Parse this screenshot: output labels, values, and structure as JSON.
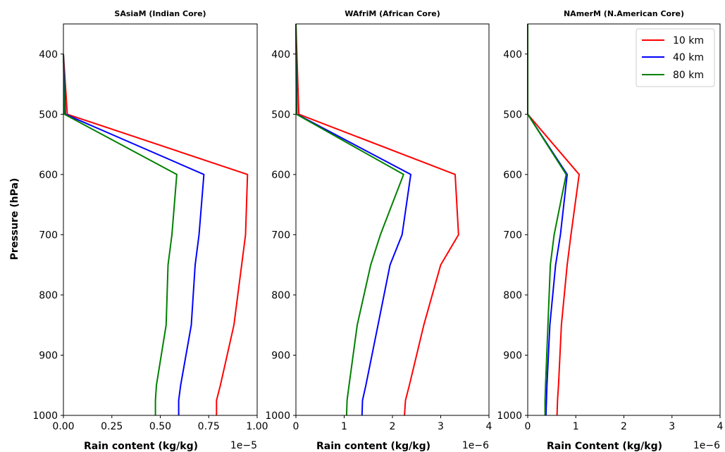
{
  "figure": {
    "ylabel": "Pressure (hPa)"
  },
  "legend": {
    "location": "upper right",
    "entries": [
      {
        "label": "10 km",
        "color": "#ff0000"
      },
      {
        "label": "40 km",
        "color": "#0000ff"
      },
      {
        "label": "80 km",
        "color": "#008000"
      }
    ]
  },
  "chart_data": [
    {
      "type": "line",
      "title": "SAsiaM (Indian Core)",
      "xlabel": "Rain content (kg/kg)",
      "x_offset_label": "1e−5",
      "xlim": [
        0,
        1.0
      ],
      "ylim": [
        1000,
        350
      ],
      "y_inverted": true,
      "xticks": [
        "0.00",
        "0.25",
        "0.50",
        "0.75",
        "1.00"
      ],
      "xtick_values": [
        0,
        0.25,
        0.5,
        0.75,
        1.0
      ],
      "yticks": [
        "400",
        "500",
        "600",
        "700",
        "800",
        "900",
        "1000"
      ],
      "ytick_values": [
        400,
        500,
        600,
        700,
        800,
        900,
        1000
      ],
      "series": [
        {
          "name": "10 km",
          "color": "#ff0000",
          "x": [
            0.0,
            0.02,
            0.95,
            0.94,
            0.92,
            0.88,
            0.81,
            0.79,
            0.79
          ],
          "y": [
            400,
            500,
            600,
            700,
            750,
            850,
            950,
            975,
            1000
          ]
        },
        {
          "name": "40 km",
          "color": "#0000ff",
          "x": [
            0.0,
            0.01,
            0.725,
            0.7,
            0.68,
            0.66,
            0.605,
            0.595,
            0.595
          ],
          "y": [
            400,
            500,
            600,
            700,
            750,
            850,
            950,
            975,
            1000
          ]
        },
        {
          "name": "80 km",
          "color": "#008000",
          "x": [
            0.0,
            0.005,
            0.585,
            0.56,
            0.54,
            0.53,
            0.48,
            0.475,
            0.475
          ],
          "y": [
            400,
            500,
            600,
            700,
            750,
            850,
            950,
            975,
            1000
          ]
        }
      ]
    },
    {
      "type": "line",
      "title": "WAfriM (African Core)",
      "xlabel": "Rain content (kg/kg)",
      "x_offset_label": "1e−6",
      "xlim": [
        0,
        4
      ],
      "ylim": [
        1000,
        350
      ],
      "y_inverted": true,
      "xticks": [
        "0",
        "1",
        "2",
        "3",
        "4"
      ],
      "xtick_values": [
        0,
        1,
        2,
        3,
        4
      ],
      "yticks": [
        "400",
        "500",
        "600",
        "700",
        "800",
        "900",
        "1000"
      ],
      "ytick_values": [
        400,
        500,
        600,
        700,
        800,
        900,
        1000
      ],
      "series": [
        {
          "name": "10 km",
          "color": "#ff0000",
          "x": [
            0.0,
            0.06,
            3.3,
            3.37,
            3.0,
            2.65,
            2.35,
            2.27,
            2.25
          ],
          "y": [
            350,
            500,
            600,
            700,
            750,
            850,
            950,
            975,
            1000
          ]
        },
        {
          "name": "40 km",
          "color": "#0000ff",
          "x": [
            0.0,
            0.02,
            2.38,
            2.2,
            1.95,
            1.7,
            1.45,
            1.38,
            1.37
          ],
          "y": [
            350,
            500,
            600,
            700,
            750,
            850,
            950,
            975,
            1000
          ]
        },
        {
          "name": "80 km",
          "color": "#008000",
          "x": [
            0.0,
            0.01,
            2.23,
            1.75,
            1.55,
            1.27,
            1.1,
            1.06,
            1.05
          ],
          "y": [
            350,
            500,
            600,
            700,
            750,
            850,
            950,
            975,
            1000
          ]
        }
      ]
    },
    {
      "type": "line",
      "title": "NAmerM (N.American Core)",
      "xlabel": "Rain Content (kg/kg)",
      "x_offset_label": "1e−6",
      "xlim": [
        0,
        4
      ],
      "ylim": [
        1000,
        350
      ],
      "y_inverted": true,
      "xticks": [
        "0",
        "1",
        "2",
        "3",
        "4"
      ],
      "xtick_values": [
        0,
        1,
        2,
        3,
        4
      ],
      "yticks": [
        "400",
        "500",
        "600",
        "700",
        "800",
        "900",
        "1000"
      ],
      "ytick_values": [
        400,
        500,
        600,
        700,
        800,
        900,
        1000
      ],
      "series": [
        {
          "name": "10 km",
          "color": "#ff0000",
          "x": [
            0.0,
            0.0,
            1.07,
            0.9,
            0.82,
            0.7,
            0.64,
            0.62,
            0.61
          ],
          "y": [
            350,
            500,
            600,
            700,
            750,
            850,
            950,
            975,
            1000
          ]
        },
        {
          "name": "40 km",
          "color": "#0000ff",
          "x": [
            0.0,
            0.0,
            0.82,
            0.68,
            0.58,
            0.46,
            0.4,
            0.39,
            0.38
          ],
          "y": [
            350,
            500,
            600,
            700,
            750,
            850,
            950,
            975,
            1000
          ]
        },
        {
          "name": "80 km",
          "color": "#008000",
          "x": [
            0.0,
            0.0,
            0.8,
            0.55,
            0.47,
            0.42,
            0.37,
            0.36,
            0.36
          ],
          "y": [
            350,
            500,
            600,
            700,
            750,
            850,
            950,
            975,
            1000
          ]
        }
      ]
    }
  ]
}
